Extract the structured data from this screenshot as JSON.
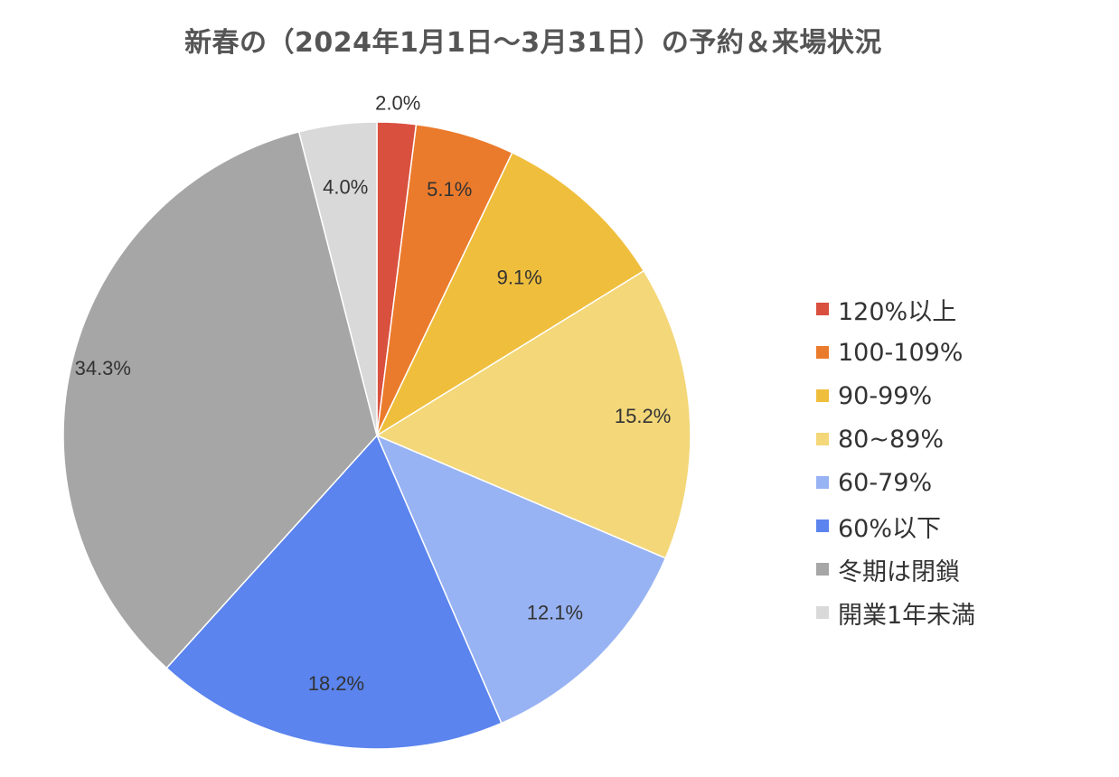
{
  "chart_data": {
    "type": "pie",
    "title": "新春の（2024年1月1日～3月31日）の予約＆来場状況",
    "legend_position": "right",
    "start_angle_deg": 0,
    "direction": "clockwise",
    "slices": [
      {
        "name": "120%以上",
        "value": 2.0,
        "label": "2.0%",
        "color": "#d9503f"
      },
      {
        "name": "100-109%",
        "value": 5.1,
        "label": "5.1%",
        "color": "#eb7b2c"
      },
      {
        "name": "90-99%",
        "value": 9.1,
        "label": "9.1%",
        "color": "#efbe3c"
      },
      {
        "name": "80~89%",
        "value": 15.2,
        "label": "15.2%",
        "color": "#f3d779"
      },
      {
        "name": "60-79%",
        "value": 12.1,
        "label": "12.1%",
        "color": "#98b3f3"
      },
      {
        "name": "60%以下",
        "value": 18.2,
        "label": "18.2%",
        "color": "#5b84ee"
      },
      {
        "name": "冬期は閉鎖",
        "value": 34.3,
        "label": "34.3%",
        "color": "#a6a6a6"
      },
      {
        "name": "開業1年未満",
        "value": 4.0,
        "label": "4.0%",
        "color": "#d9d9d9"
      }
    ]
  }
}
